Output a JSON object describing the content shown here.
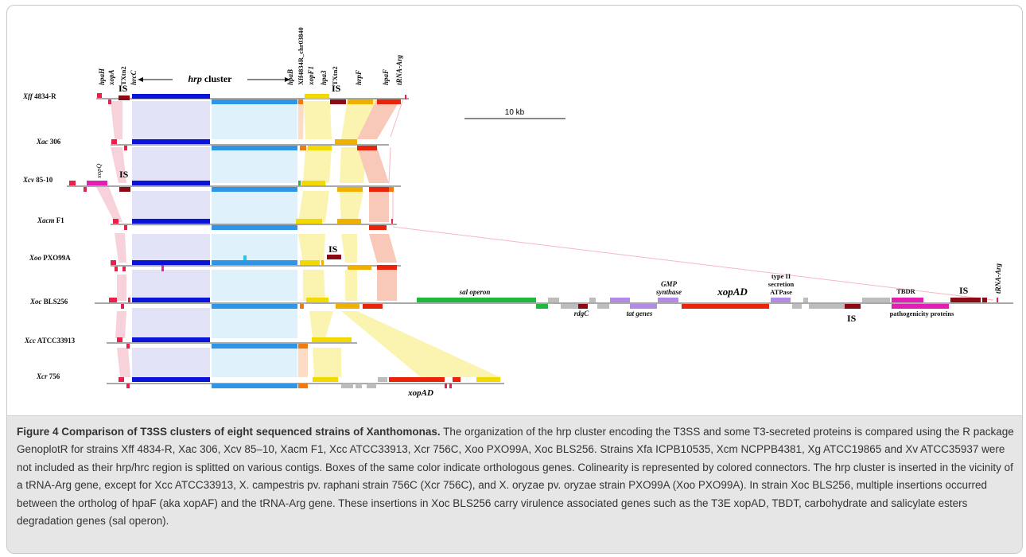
{
  "figure": {
    "strains": [
      {
        "name": "Xff",
        "suffix": " 4834-R"
      },
      {
        "name": "Xac",
        "suffix": " 306"
      },
      {
        "name": "Xcv",
        "suffix": " 85-10"
      },
      {
        "name": "Xacm",
        "suffix": " F1"
      },
      {
        "name": "Xoo",
        "suffix": " PXO99A"
      },
      {
        "name": "Xoc",
        "suffix": " BLS256"
      },
      {
        "name": "Xcc",
        "suffix": " ATCC33913"
      },
      {
        "name": "Xcr",
        "suffix": " 756"
      }
    ],
    "top_gene_labels": {
      "hpaH": "hpaH",
      "xopA": "xopA",
      "txn2_a": "TXtn2",
      "hrcC": "hrcC",
      "hrp_cluster_italic": "hrp",
      "hrp_cluster_rest": " cluster",
      "hpaB": "hpaB",
      "xff_locus": "Xff4834R_chr03840",
      "xopF1": "xopF1",
      "hpa3": "hpa3",
      "txn2_b": "TXtn2",
      "hrpF": "hrpF",
      "hpaF": "hpaF",
      "trna_arg": "tRNA-Arg"
    },
    "is_label": "IS",
    "xopQ_label": "xopQ",
    "scale_bar_label": "10 kb",
    "xoc_insert_labels": {
      "sal_operon": "sal operon",
      "rdgC": "rdgC",
      "tat_genes": "tat genes",
      "gmp_line1": "GMP",
      "gmp_line2": "synthase",
      "xopAD": "xopAD",
      "type2_line1": "type II",
      "type2_line2": "secretion",
      "type2_line3": "ATPase",
      "tbdr": "TBDR",
      "pathogenicity": "pathogenicity proteins",
      "trna_arg": "tRNA-Arg"
    },
    "xcr_xopAD_label": "xopAD",
    "colors": {
      "hrc_dark_blue": "#0a14d8",
      "hrp_light_blue": "#2f95e6",
      "red_pink": "#e8204a",
      "dark_red": "#8b0a14",
      "magenta": "#e21fb4",
      "orange": "#f07a10",
      "yellow": "#f2d900",
      "gold": "#f0b000",
      "red": "#e8240a",
      "green": "#1eb83a",
      "violet": "#b38ae6",
      "grey": "#bdbdbd"
    }
  },
  "caption": {
    "title": "Figure 4 Comparison of T3SS clusters of eight sequenced strains of Xanthomonas.",
    "s1": " The organization of the hrp cluster encoding the T3SS and some T3-secreted proteins is compared using the R package GenoplotR for strains Xff 4834-R, Xac 306, Xcv 85–10, Xacm F1, Xcc ATCC33913, Xcr 756C, Xoo PXO99A, Xoc BLS256. Strains Xfa ICPB10535, Xcm NCPPB4381, Xg ATCC19865 and Xv ATCC35937 were not included as their hrp/hrc region is splitted on various contigs. Boxes of the same color indicate orthologous genes. Colinearity is represented by colored connectors. The hrp cluster is inserted in the vicinity of a tRNA-Arg gene, except for Xcc ATCC33913, X. campestris pv. raphani strain 756C (Xcr 756C), and X. oryzae pv. oryzae strain PXO99A (Xoo PXO99A). In strain Xoc BLS256, multiple insertions occurred between the ortholog of hpaF (aka xopAF) and the tRNA-Arg gene. These insertions in Xoc BLS256 carry virulence associated genes such as the T3E xopAD, TBDT, carbohydrate and salicylate esters degradation genes (sal operon)."
  }
}
